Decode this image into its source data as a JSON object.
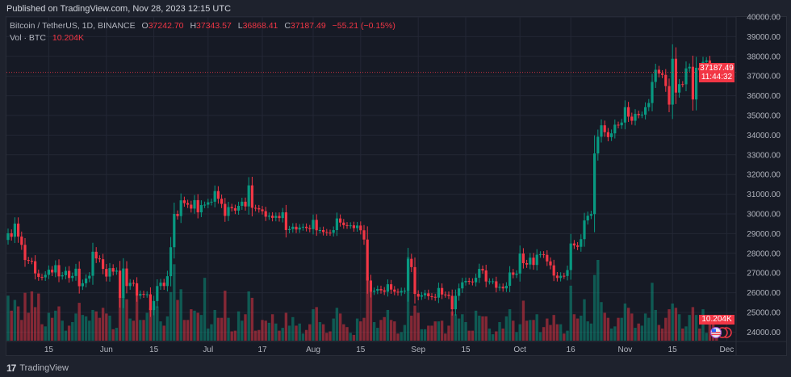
{
  "published": "Published on TradingView.com, Nov 28, 2023 12:15 UTC",
  "legend": {
    "symbol": "Bitcoin / TetherUS, 1D, BINANCE",
    "o_label": "O",
    "o": "37242.70",
    "h_label": "H",
    "h": "37343.57",
    "l_label": "L",
    "l": "36868.41",
    "c_label": "C",
    "c": "37187.49",
    "change": "−55.21 (−0.15%)",
    "vol_label": "Vol · BTC",
    "vol": "10.204K"
  },
  "price_tag": {
    "price": "37187.49",
    "countdown": "11:44:32"
  },
  "volume_tag": "10.204K",
  "footer": {
    "brand": "TradingView"
  },
  "colors": {
    "up": "#089981",
    "down": "#f23645",
    "background": "#161a25",
    "grid": "#232735"
  },
  "icons": {
    "event": "us-flag-economic-event-icon",
    "logo": "tradingview-logo-icon"
  },
  "chart_data": {
    "type": "candlestick",
    "symbol": "Bitcoin / TetherUS",
    "interval": "1D",
    "exchange": "BINANCE",
    "start_date": "2023-05-03",
    "end_date": "2023-11-28",
    "first_open": 28680,
    "ylim": [
      24000,
      40000
    ],
    "y_ticks": [
      "40000.00",
      "39000.00",
      "38000.00",
      "37000.00",
      "36000.00",
      "35000.00",
      "34000.00",
      "33000.00",
      "32000.00",
      "31000.00",
      "30000.00",
      "29000.00",
      "28000.00",
      "27000.00",
      "26000.00",
      "25000.00",
      "24000.00"
    ],
    "x_ticks": [
      {
        "label": "15",
        "date": "2023-05-15"
      },
      {
        "label": "Jun",
        "date": "2023-06-01"
      },
      {
        "label": "15",
        "date": "2023-06-15"
      },
      {
        "label": "Jul",
        "date": "2023-07-01"
      },
      {
        "label": "17",
        "date": "2023-07-17"
      },
      {
        "label": "Aug",
        "date": "2023-08-01"
      },
      {
        "label": "15",
        "date": "2023-08-15"
      },
      {
        "label": "Sep",
        "date": "2023-09-01"
      },
      {
        "label": "15",
        "date": "2023-09-15"
      },
      {
        "label": "Oct",
        "date": "2023-10-01"
      },
      {
        "label": "16",
        "date": "2023-10-16"
      },
      {
        "label": "Nov",
        "date": "2023-11-01"
      },
      {
        "label": "15",
        "date": "2023-11-15"
      },
      {
        "label": "Dec",
        "date": "2023-12-01"
      }
    ],
    "grid": true,
    "close": [
      29020,
      28840,
      29510,
      28850,
      28430,
      27660,
      27620,
      27600,
      26980,
      26800,
      26780,
      26910,
      27170,
      27030,
      27400,
      26830,
      26890,
      27110,
      26750,
      26850,
      27220,
      26330,
      26480,
      26720,
      26860,
      28080,
      27740,
      27700,
      27210,
      26820,
      27250,
      27070,
      27120,
      25740,
      27230,
      26340,
      26500,
      26480,
      25850,
      25940,
      25900,
      25920,
      25120,
      25580,
      26340,
      26510,
      26340,
      26840,
      28310,
      30000,
      29890,
      30690,
      30550,
      30470,
      30270,
      30700,
      30080,
      30450,
      30470,
      30590,
      30620,
      31160,
      30770,
      30510,
      29900,
      30350,
      30290,
      30170,
      30410,
      30620,
      30380,
      31450,
      30310,
      30290,
      30230,
      30140,
      29860,
      29910,
      29800,
      29900,
      29790,
      30080,
      29180,
      29230,
      29350,
      29210,
      29310,
      29350,
      29280,
      29230,
      29700,
      29170,
      29180,
      29080,
      29050,
      29040,
      29180,
      29770,
      29560,
      29430,
      29400,
      29420,
      29280,
      29410,
      29170,
      28700,
      26620,
      26050,
      26100,
      26190,
      26120,
      26050,
      26430,
      26160,
      26050,
      26010,
      26090,
      26100,
      27720,
      27300,
      25940,
      25800,
      25870,
      25970,
      25820,
      25790,
      25750,
      26240,
      25910,
      25900,
      25840,
      25160,
      25840,
      26220,
      26530,
      26600,
      26570,
      26530,
      26760,
      27210,
      27130,
      26570,
      26580,
      26580,
      26250,
      26300,
      26220,
      26350,
      27030,
      26910,
      26970,
      27990,
      27500,
      27430,
      27780,
      27410,
      27930,
      27950,
      27920,
      27590,
      27390,
      26870,
      26750,
      26860,
      26850,
      27150,
      28500,
      28400,
      28330,
      28720,
      29670,
      29910,
      29990,
      33070,
      33920,
      34500,
      34150,
      33900,
      34090,
      34530,
      34500,
      34640,
      35420,
      34940,
      34730,
      35080,
      35020,
      35040,
      35420,
      35630,
      36700,
      37320,
      37130,
      37060,
      36490,
      35550,
      37880,
      36160,
      36590,
      36580,
      37390,
      37470,
      35810,
      37420,
      37290,
      37720,
      37790,
      37450,
      37242.7,
      37187.49
    ],
    "last_candle": {
      "open": 37242.7,
      "high": 37343.57,
      "low": 36868.41,
      "close": 37187.49
    },
    "volume_unit": "K BTC",
    "volume": [
      63,
      42,
      57,
      48,
      29,
      67,
      39,
      69,
      47,
      66,
      23,
      20,
      39,
      32,
      42,
      48,
      28,
      14,
      21,
      26,
      38,
      53,
      36,
      34,
      28,
      43,
      41,
      32,
      46,
      38,
      35,
      16,
      18,
      62,
      61,
      58,
      31,
      28,
      63,
      29,
      29,
      39,
      46,
      49,
      48,
      27,
      21,
      34,
      68,
      107,
      57,
      72,
      29,
      29,
      44,
      42,
      39,
      36,
      88,
      17,
      23,
      43,
      32,
      32,
      70,
      32,
      13,
      14,
      41,
      28,
      37,
      69,
      60,
      14,
      15,
      29,
      28,
      25,
      37,
      24,
      14,
      18,
      39,
      21,
      33,
      21,
      24,
      10,
      15,
      23,
      44,
      47,
      26,
      23,
      11,
      13,
      31,
      46,
      38,
      23,
      19,
      11,
      8,
      31,
      27,
      32,
      89,
      70,
      26,
      18,
      29,
      33,
      43,
      29,
      27,
      10,
      12,
      22,
      117,
      35,
      49,
      39,
      16,
      16,
      21,
      21,
      27,
      27,
      28,
      10,
      21,
      41,
      37,
      31,
      37,
      26,
      14,
      14,
      42,
      35,
      34,
      34,
      17,
      9,
      13,
      26,
      17,
      34,
      44,
      28,
      12,
      23,
      56,
      28,
      29,
      29,
      37,
      12,
      19,
      31,
      22,
      36,
      23,
      23,
      10,
      14,
      77,
      37,
      31,
      35,
      58,
      27,
      24,
      92,
      113,
      54,
      39,
      32,
      17,
      20,
      32,
      32,
      52,
      46,
      38,
      18,
      24,
      21,
      38,
      32,
      81,
      43,
      22,
      17,
      32,
      44,
      52,
      46,
      37,
      17,
      20,
      36,
      47,
      36,
      17,
      44,
      11,
      25,
      29,
      10.204
    ]
  }
}
